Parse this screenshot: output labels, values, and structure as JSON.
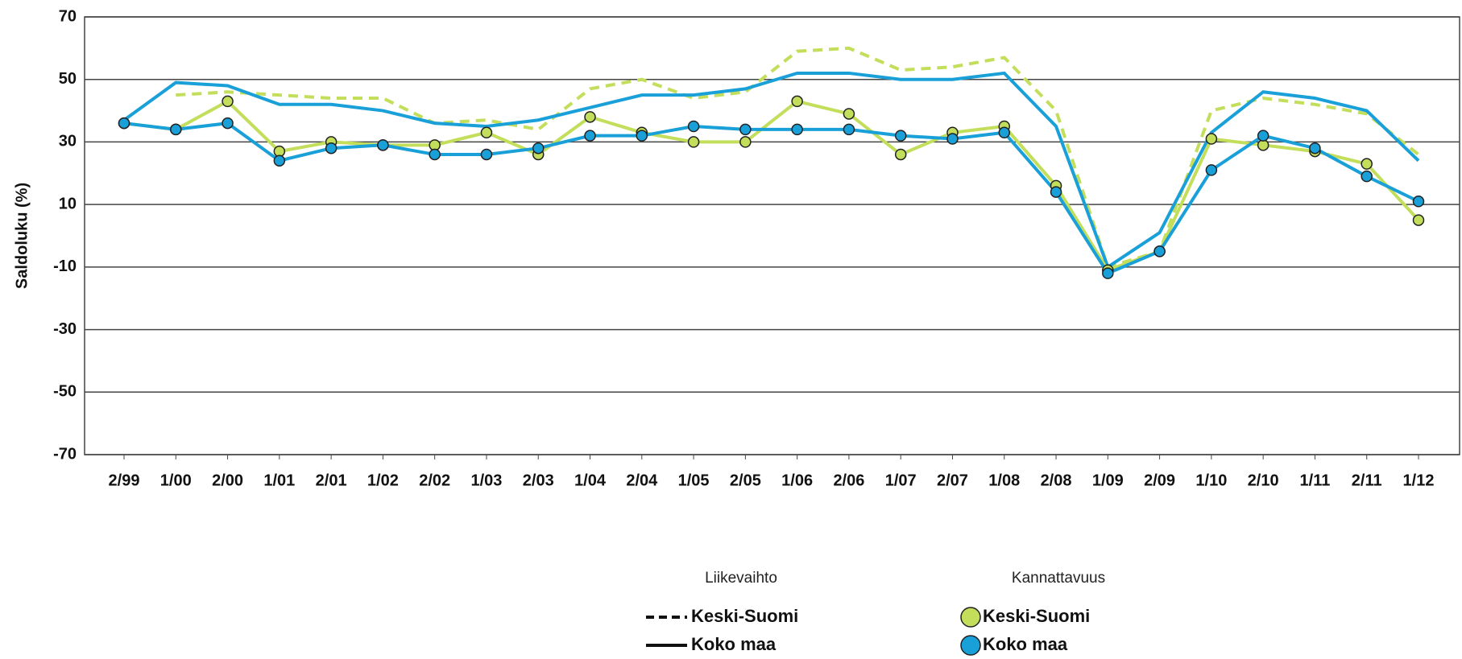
{
  "chart_data": {
    "type": "line",
    "y_label": "Saldoluku (%)",
    "categories": [
      "2/99",
      "1/00",
      "2/00",
      "1/01",
      "2/01",
      "1/02",
      "2/02",
      "1/03",
      "2/03",
      "1/04",
      "2/04",
      "1/05",
      "2/05",
      "1/06",
      "2/06",
      "1/07",
      "2/07",
      "1/08",
      "2/08",
      "1/09",
      "2/09",
      "1/10",
      "2/10",
      "1/11",
      "2/11",
      "1/12"
    ],
    "ylim": [
      -70,
      70
    ],
    "yticks": [
      -70,
      -50,
      -30,
      -10,
      10,
      30,
      50,
      70
    ],
    "grid": true,
    "legend_titles": [
      "Liikevaihto",
      "Kannattavuus"
    ],
    "series": [
      {
        "name": "Keski-Suomi",
        "color": "#c2de5a",
        "style": "dashed",
        "values": [
          null,
          45,
          46,
          45,
          44,
          44,
          36,
          37,
          34,
          47,
          50,
          44,
          46,
          59,
          60,
          53,
          54,
          57,
          40,
          -10,
          -5,
          40,
          44,
          42,
          39,
          26
        ]
      },
      {
        "name": "Koko maa",
        "color": "#1aa0d8",
        "style": "solid",
        "values": [
          37,
          49,
          48,
          42,
          42,
          40,
          36,
          35,
          37,
          41,
          45,
          45,
          47,
          52,
          52,
          50,
          50,
          52,
          35,
          -10,
          1,
          33,
          46,
          44,
          40,
          24
        ]
      },
      {
        "name": "Keski-Suomi",
        "color": "#c2de5a",
        "style": "markers",
        "values": [
          36,
          34,
          43,
          27,
          30,
          29,
          29,
          33,
          26,
          38,
          33,
          30,
          30,
          43,
          39,
          26,
          33,
          35,
          16,
          -11,
          -5,
          31,
          29,
          27,
          23,
          5
        ]
      },
      {
        "name": "Koko maa",
        "color": "#1aa0d8",
        "style": "markers",
        "values": [
          36,
          34,
          36,
          24,
          28,
          29,
          26,
          26,
          28,
          32,
          32,
          35,
          34,
          34,
          34,
          32,
          31,
          33,
          14,
          -12,
          -5,
          21,
          32,
          28,
          19,
          11
        ]
      }
    ]
  }
}
